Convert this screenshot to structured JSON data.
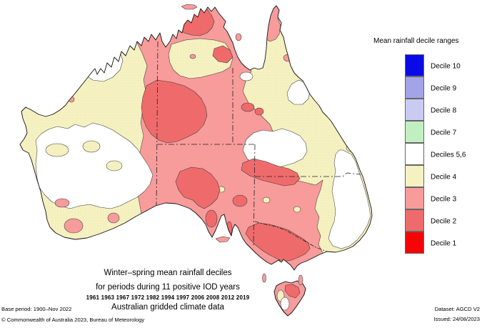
{
  "legend": {
    "title": "Mean rainfall decile ranges",
    "items": [
      {
        "key": "d10",
        "label": "Decile 10",
        "color": "#0A0AE6"
      },
      {
        "key": "d9",
        "label": "Decile 9",
        "color": "#A3A3E8"
      },
      {
        "key": "d8",
        "label": "Decile 8",
        "color": "#CBCBF2"
      },
      {
        "key": "d7",
        "label": "Decile 7",
        "color": "#C2EFC2"
      },
      {
        "key": "d56",
        "label": "Deciles 5,6",
        "color": "#FFFFFF"
      },
      {
        "key": "d4",
        "label": "Decile 4",
        "color": "#F6F1C1"
      },
      {
        "key": "d3",
        "label": "Decile 3",
        "color": "#F79B9B"
      },
      {
        "key": "d2",
        "label": "Decile 2",
        "color": "#EF6B6B"
      },
      {
        "key": "d1",
        "label": "Decile 1",
        "color": "#F50505"
      }
    ]
  },
  "title_block": {
    "line1": "Winter–spring mean rainfall deciles",
    "line2": "for periods during 11 positive IOD years",
    "years": "1961 1963 1967 1972 1982 1994 1997 2006 2008 2012 2019",
    "line3": "Australian gridded climate data"
  },
  "footer": {
    "base_period": "Base period: 1900–Nov 2022",
    "copyright": "© Commonwealth of Australia 2023, Bureau of Meteorology",
    "dataset": "Dataset: AGCD V2",
    "issued": "Issued: 24/08/2023"
  },
  "map": {
    "description": "Choropleth map of Australia showing winter–spring mean rainfall deciles during positive IOD years; interior east and south mostly deciles 2–3, west and east coast deciles 4–6",
    "ocean_color": "#FFFFFF",
    "coast_color": "#111111"
  }
}
